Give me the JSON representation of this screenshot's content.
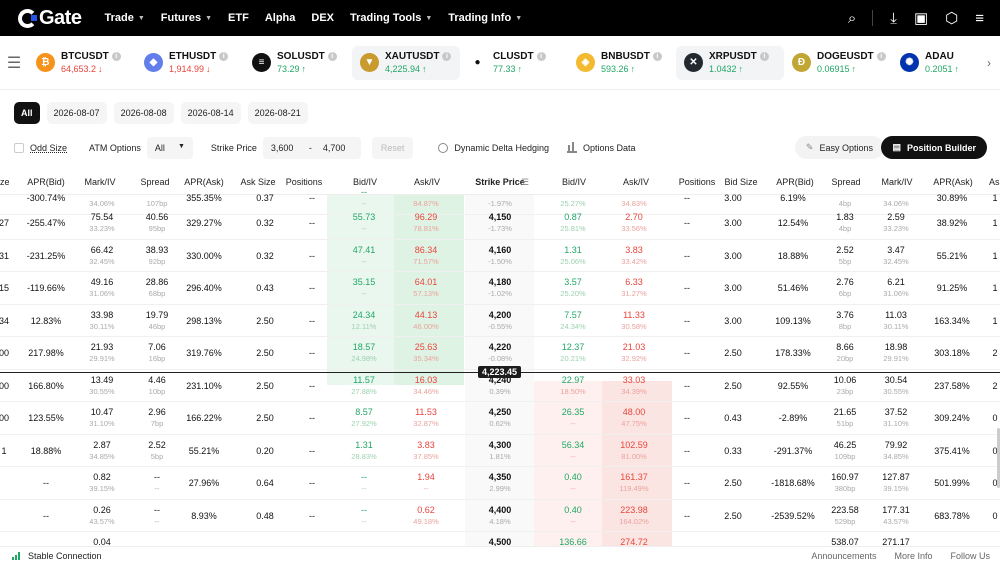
{
  "nav": {
    "brand": "Gate",
    "items": [
      "Trade",
      "Futures",
      "ETF",
      "Alpha",
      "DEX",
      "Trading Tools",
      "Trading Info"
    ]
  },
  "ticker": [
    {
      "sym": "BTCUSDT",
      "px": "64,653.2",
      "dir": "↓",
      "color": "#f7931a",
      "glyph": "₿"
    },
    {
      "sym": "ETHUSDT",
      "px": "1,914.99",
      "dir": "↓",
      "color": "#627eea",
      "glyph": "◆"
    },
    {
      "sym": "SOLUSDT",
      "px": "73.29",
      "dir": "↑",
      "color": "#111111",
      "glyph": "≡"
    },
    {
      "sym": "XAUTUSDT",
      "px": "4,225.94",
      "dir": "↑",
      "color": "#c99a2e",
      "glyph": "▼"
    },
    {
      "sym": "CLUSDT",
      "px": "77.33",
      "dir": "↑",
      "color": "#ffffff",
      "glyph": "●"
    },
    {
      "sym": "BNBUSDT",
      "px": "593.26",
      "dir": "↑",
      "color": "#f3ba2f",
      "glyph": "◈"
    },
    {
      "sym": "XRPUSDT",
      "px": "1.0432",
      "dir": "↑",
      "color": "#23292f",
      "glyph": "✕"
    },
    {
      "sym": "DOGEUSDT",
      "px": "0.06915",
      "dir": "↑",
      "color": "#c2a633",
      "glyph": "Ð"
    },
    {
      "sym": "ADAU",
      "px": "0.2051",
      "dir": "↑",
      "color": "#0033ad",
      "glyph": "✺"
    }
  ],
  "dates": [
    "All",
    "2026-08-07",
    "2026-08-08",
    "2026-08-14",
    "2026-08-21"
  ],
  "filters": {
    "odd_size": "Odd Size",
    "atm_options": "ATM Options",
    "atm_value": "All",
    "strike_price": "Strike Price",
    "strike_from": "3,600",
    "strike_dash": "-",
    "strike_to": "4,700",
    "reset": "Reset",
    "ddh": "Dynamic Delta Hedging",
    "options_data": "Options Data",
    "easy_options": "Easy Options",
    "position_builder": "Position Builder"
  },
  "headers": {
    "call": [
      "ze",
      "APR(Bid)",
      "Mark/IV",
      "Spread",
      "APR(Ask)",
      "Ask Size",
      "Positions",
      "Bid/IV",
      "Ask/IV"
    ],
    "strike": "Strike Price",
    "put": [
      "Bid/IV",
      "Ask/IV",
      "Positions",
      "Bid Size",
      "APR(Bid)",
      "Spread",
      "Mark/IV",
      "APR(Ask)",
      "As"
    ]
  },
  "spot": "4,223.45",
  "rows": [
    {
      "cs": "",
      "capr": "-300.74%",
      "cmark": "",
      "civ": "34.06%",
      "csp": "",
      "csb": "107bp",
      "caa": "355.35%",
      "cas": "0.37",
      "cpos": "--",
      "cbid": "--",
      "cbiv": "--",
      "cask": "",
      "caiv": "84.87%",
      "k": "",
      "kp": "-1.97%",
      "pbid": "",
      "pbiv": "25.27%",
      "pask": "",
      "paiv": "34.83%",
      "ppos": "--",
      "pbs": "3.00",
      "papr": "6.19%",
      "psp": "",
      "psb": "4bp",
      "pmark": "",
      "piv": "34.06%",
      "paa": "30.89%",
      "pas": "1"
    },
    {
      "cs": "27",
      "capr": "-255.47%",
      "cmark": "75.54",
      "civ": "33.23%",
      "csp": "40.56",
      "csb": "95bp",
      "caa": "329.27%",
      "cas": "0.32",
      "cpos": "--",
      "cbid": "55.73",
      "cbiv": "--",
      "cask": "96.29",
      "caiv": "78.81%",
      "k": "4,150",
      "kp": "-1.73%",
      "pbid": "0.87",
      "pbiv": "25.81%",
      "pask": "2.70",
      "paiv": "33.56%",
      "ppos": "--",
      "pbs": "3.00",
      "papr": "12.54%",
      "psp": "1.83",
      "psb": "4bp",
      "pmark": "2.59",
      "piv": "33.23%",
      "paa": "38.92%",
      "pas": "1"
    },
    {
      "cs": "31",
      "capr": "-231.25%",
      "cmark": "66.42",
      "civ": "32.45%",
      "csp": "38.93",
      "csb": "92bp",
      "caa": "330.00%",
      "cas": "0.32",
      "cpos": "--",
      "cbid": "47.41",
      "cbiv": "--",
      "cask": "86.34",
      "caiv": "71.57%",
      "k": "4,160",
      "kp": "-1.50%",
      "pbid": "1.31",
      "pbiv": "25.06%",
      "pask": "3.83",
      "paiv": "33.42%",
      "ppos": "--",
      "pbs": "3.00",
      "papr": "18.88%",
      "psp": "2.52",
      "psb": "5bp",
      "pmark": "3.47",
      "piv": "32.45%",
      "paa": "55.21%",
      "pas": "1"
    },
    {
      "cs": "15",
      "capr": "-119.66%",
      "cmark": "49.16",
      "civ": "31.06%",
      "csp": "28.86",
      "csb": "68bp",
      "caa": "296.40%",
      "cas": "0.43",
      "cpos": "--",
      "cbid": "35.15",
      "cbiv": "--",
      "cask": "64.01",
      "caiv": "57.13%",
      "k": "4,180",
      "kp": "-1.02%",
      "pbid": "3.57",
      "pbiv": "25.20%",
      "pask": "6.33",
      "paiv": "31.27%",
      "ppos": "--",
      "pbs": "3.00",
      "papr": "51.46%",
      "psp": "2.76",
      "psb": "6bp",
      "pmark": "6.21",
      "piv": "31.06%",
      "paa": "91.25%",
      "pas": "1"
    },
    {
      "cs": "34",
      "capr": "12.83%",
      "cmark": "33.98",
      "civ": "30.11%",
      "csp": "19.79",
      "csb": "46bp",
      "caa": "298.13%",
      "cas": "2.50",
      "cpos": "--",
      "cbid": "24.34",
      "cbiv": "12.11%",
      "cask": "44.13",
      "caiv": "46.00%",
      "k": "4,200",
      "kp": "-0.55%",
      "pbid": "7.57",
      "pbiv": "24.34%",
      "pask": "11.33",
      "paiv": "30.58%",
      "ppos": "--",
      "pbs": "3.00",
      "papr": "109.13%",
      "psp": "3.76",
      "psb": "8bp",
      "pmark": "11.03",
      "piv": "30.11%",
      "paa": "163.34%",
      "pas": "1"
    },
    {
      "cs": "00",
      "capr": "217.98%",
      "cmark": "21.93",
      "civ": "29.91%",
      "csp": "7.06",
      "csb": "16bp",
      "caa": "319.76%",
      "cas": "2.50",
      "cpos": "--",
      "cbid": "18.57",
      "cbiv": "24.98%",
      "cask": "25.63",
      "caiv": "35.34%",
      "k": "4,220",
      "kp": "-0.08%",
      "pbid": "12.37",
      "pbiv": "20.21%",
      "pask": "21.03",
      "paiv": "32.92%",
      "ppos": "--",
      "pbs": "2.50",
      "papr": "178.33%",
      "psp": "8.66",
      "psb": "20bp",
      "pmark": "18.98",
      "piv": "29.91%",
      "paa": "303.18%",
      "pas": "2"
    },
    {
      "cs": "00",
      "capr": "166.80%",
      "cmark": "13.49",
      "civ": "30.55%",
      "csp": "4.46",
      "csb": "10bp",
      "caa": "231.10%",
      "cas": "2.50",
      "cpos": "--",
      "cbid": "11.57",
      "cbiv": "27.88%",
      "cask": "16.03",
      "caiv": "34.46%",
      "k": "4,240",
      "kp": "0.39%",
      "pbid": "22.97",
      "pbiv": "18.50%",
      "pask": "33.03",
      "paiv": "34.39%",
      "ppos": "--",
      "pbs": "2.50",
      "papr": "92.55%",
      "psp": "10.06",
      "psb": "23bp",
      "pmark": "30.54",
      "piv": "30.55%",
      "paa": "237.58%",
      "pas": "2"
    },
    {
      "cs": "00",
      "capr": "123.55%",
      "cmark": "10.47",
      "civ": "31.10%",
      "csp": "2.96",
      "csb": "7bp",
      "caa": "166.22%",
      "cas": "2.50",
      "cpos": "--",
      "cbid": "8.57",
      "cbiv": "27.92%",
      "cask": "11.53",
      "caiv": "32.87%",
      "k": "4,250",
      "kp": "0.62%",
      "pbid": "26.35",
      "pbiv": "--",
      "pask": "48.00",
      "paiv": "47.75%",
      "ppos": "--",
      "pbs": "0.43",
      "papr": "-2.89%",
      "psp": "21.65",
      "psb": "51bp",
      "pmark": "37.52",
      "piv": "31.10%",
      "paa": "309.24%",
      "pas": "0"
    },
    {
      "cs": "1",
      "capr": "18.88%",
      "cmark": "2.87",
      "civ": "34.85%",
      "csp": "2.52",
      "csb": "5bp",
      "caa": "55.21%",
      "cas": "0.20",
      "cpos": "--",
      "cbid": "1.31",
      "cbiv": "28.83%",
      "cask": "3.83",
      "caiv": "37.85%",
      "k": "4,300",
      "kp": "1.81%",
      "pbid": "56.34",
      "pbiv": "--",
      "pask": "102.59",
      "paiv": "81.00%",
      "ppos": "--",
      "pbs": "0.33",
      "papr": "-291.37%",
      "psp": "46.25",
      "psb": "109bp",
      "pmark": "79.92",
      "piv": "34.85%",
      "paa": "375.41%",
      "pas": "0"
    },
    {
      "cs": "",
      "capr": "--",
      "cmark": "0.82",
      "civ": "39.15%",
      "csp": "--",
      "csb": "--",
      "caa": "27.96%",
      "cas": "0.64",
      "cpos": "--",
      "cbid": "--",
      "cbiv": "--",
      "cask": "1.94",
      "caiv": "--",
      "k": "4,350",
      "kp": "2.99%",
      "pbid": "0.40",
      "pbiv": "--",
      "pask": "161.37",
      "paiv": "119.49%",
      "ppos": "--",
      "pbs": "2.50",
      "papr": "-1818.68%",
      "psp": "160.97",
      "psb": "380bp",
      "pmark": "127.87",
      "piv": "39.15%",
      "paa": "501.99%",
      "pas": "0"
    },
    {
      "cs": "",
      "capr": "--",
      "cmark": "0.26",
      "civ": "43.57%",
      "csp": "--",
      "csb": "--",
      "caa": "8.93%",
      "cas": "0.48",
      "cpos": "--",
      "cbid": "--",
      "cbiv": "--",
      "cask": "0.62",
      "caiv": "49.18%",
      "k": "4,400",
      "kp": "4.18%",
      "pbid": "0.40",
      "pbiv": "--",
      "pask": "223.98",
      "paiv": "164.02%",
      "ppos": "--",
      "pbs": "2.50",
      "papr": "-2539.52%",
      "psp": "223.58",
      "psb": "529bp",
      "pmark": "177.31",
      "piv": "43.57%",
      "paa": "683.78%",
      "pas": "0"
    },
    {
      "cs": "",
      "capr": "",
      "cmark": "0.04",
      "civ": "",
      "csp": "",
      "csb": "",
      "caa": "",
      "cas": "",
      "cpos": "",
      "cbid": "",
      "cbiv": "",
      "cask": "",
      "caiv": "",
      "k": "4,500",
      "kp": "",
      "pbid": "136.66",
      "pbiv": "",
      "pask": "274.72",
      "paiv": "",
      "ppos": "",
      "pbs": "",
      "papr": "",
      "psp": "538.07",
      "psb": "",
      "pmark": "271.17",
      "piv": "",
      "paa": "",
      "pas": ""
    }
  ],
  "footer": {
    "connection": "Stable Connection",
    "links": [
      "Announcements",
      "More Info",
      "Follow Us"
    ]
  }
}
